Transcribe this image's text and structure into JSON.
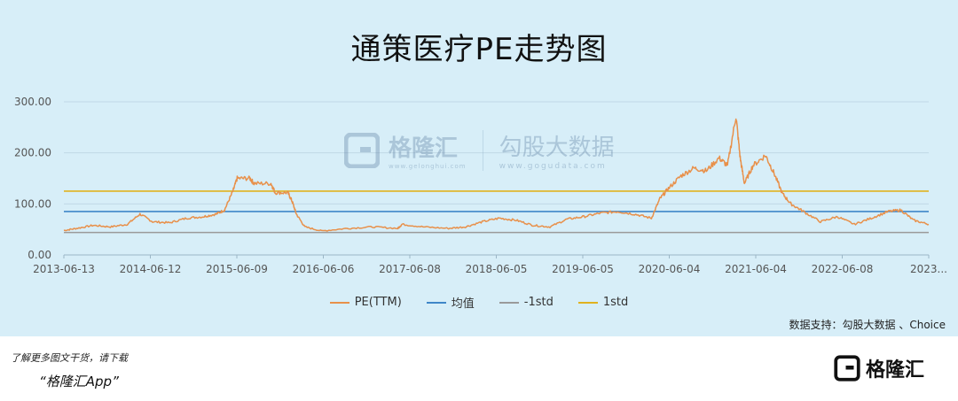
{
  "title": "通策医疗PE走势图",
  "watermark": {
    "brand": "格隆汇",
    "brand_sub": "www.gelonghui.com",
    "brand2": "勾股大数据",
    "brand2_sub": "www.gogudata.com"
  },
  "legend": [
    {
      "label": "PE(TTM)",
      "color": "#e8904a"
    },
    {
      "label": "均值",
      "color": "#3f86c8"
    },
    {
      "label": "-1std",
      "color": "#9a9a9a"
    },
    {
      "label": "1std",
      "color": "#e0b21f"
    }
  ],
  "source": "数据支持：勾股大数据 、Choice",
  "footer": {
    "line1": "了解更多图文干货，请下载",
    "line2": "“格隆汇App”",
    "logo_text": "格隆汇"
  },
  "colors": {
    "background": "#d7eef8",
    "grid": "#c0d8e6",
    "axis_text": "#555555"
  },
  "chart_data": {
    "type": "line",
    "title": "通策医疗PE走势图",
    "xlabel": "",
    "ylabel": "",
    "ylim": [
      0,
      300
    ],
    "y_ticks": [
      "0.00",
      "100.00",
      "200.00",
      "300.00"
    ],
    "x_ticks": [
      "2013-06-13",
      "2014-06-12",
      "2015-06-09",
      "2016-06-06",
      "2017-06-08",
      "2018-06-05",
      "2019-06-05",
      "2020-06-04",
      "2021-06-04",
      "2022-06-08",
      "2023..."
    ],
    "x_range": [
      2013.45,
      2023.68
    ],
    "grid": "horizontal",
    "legend_position": "bottom",
    "series": [
      {
        "name": "PE(TTM)",
        "color": "#e8904a",
        "points": [
          [
            2013.45,
            48
          ],
          [
            2013.6,
            52
          ],
          [
            2013.8,
            58
          ],
          [
            2014.0,
            55
          ],
          [
            2014.2,
            60
          ],
          [
            2014.35,
            80
          ],
          [
            2014.5,
            65
          ],
          [
            2014.7,
            63
          ],
          [
            2014.9,
            72
          ],
          [
            2015.1,
            75
          ],
          [
            2015.25,
            80
          ],
          [
            2015.35,
            88
          ],
          [
            2015.45,
            125
          ],
          [
            2015.5,
            150
          ],
          [
            2015.65,
            150
          ],
          [
            2015.7,
            140
          ],
          [
            2015.9,
            140
          ],
          [
            2015.95,
            122
          ],
          [
            2016.1,
            122
          ],
          [
            2016.15,
            105
          ],
          [
            2016.2,
            80
          ],
          [
            2016.3,
            55
          ],
          [
            2016.5,
            47
          ],
          [
            2016.8,
            52
          ],
          [
            2017.1,
            55
          ],
          [
            2017.4,
            52
          ],
          [
            2017.45,
            60
          ],
          [
            2017.7,
            55
          ],
          [
            2018.0,
            52
          ],
          [
            2018.2,
            55
          ],
          [
            2018.4,
            65
          ],
          [
            2018.6,
            72
          ],
          [
            2018.8,
            68
          ],
          [
            2019.0,
            58
          ],
          [
            2019.2,
            55
          ],
          [
            2019.4,
            70
          ],
          [
            2019.6,
            75
          ],
          [
            2019.8,
            82
          ],
          [
            2020.0,
            85
          ],
          [
            2020.2,
            80
          ],
          [
            2020.4,
            72
          ],
          [
            2020.5,
            110
          ],
          [
            2020.6,
            130
          ],
          [
            2020.75,
            155
          ],
          [
            2020.9,
            170
          ],
          [
            2021.05,
            165
          ],
          [
            2021.2,
            190
          ],
          [
            2021.3,
            175
          ],
          [
            2021.4,
            272
          ],
          [
            2021.45,
            190
          ],
          [
            2021.5,
            140
          ],
          [
            2021.6,
            175
          ],
          [
            2021.75,
            195
          ],
          [
            2021.85,
            160
          ],
          [
            2021.95,
            120
          ],
          [
            2022.05,
            100
          ],
          [
            2022.2,
            85
          ],
          [
            2022.4,
            65
          ],
          [
            2022.6,
            75
          ],
          [
            2022.8,
            60
          ],
          [
            2023.0,
            72
          ],
          [
            2023.2,
            85
          ],
          [
            2023.35,
            88
          ],
          [
            2023.5,
            68
          ],
          [
            2023.68,
            60
          ]
        ]
      },
      {
        "name": "均值",
        "color": "#3f86c8",
        "constant": 85
      },
      {
        "name": "-1std",
        "color": "#9a9a9a",
        "constant": 44
      },
      {
        "name": "1std",
        "color": "#e0b21f",
        "constant": 125
      }
    ]
  }
}
